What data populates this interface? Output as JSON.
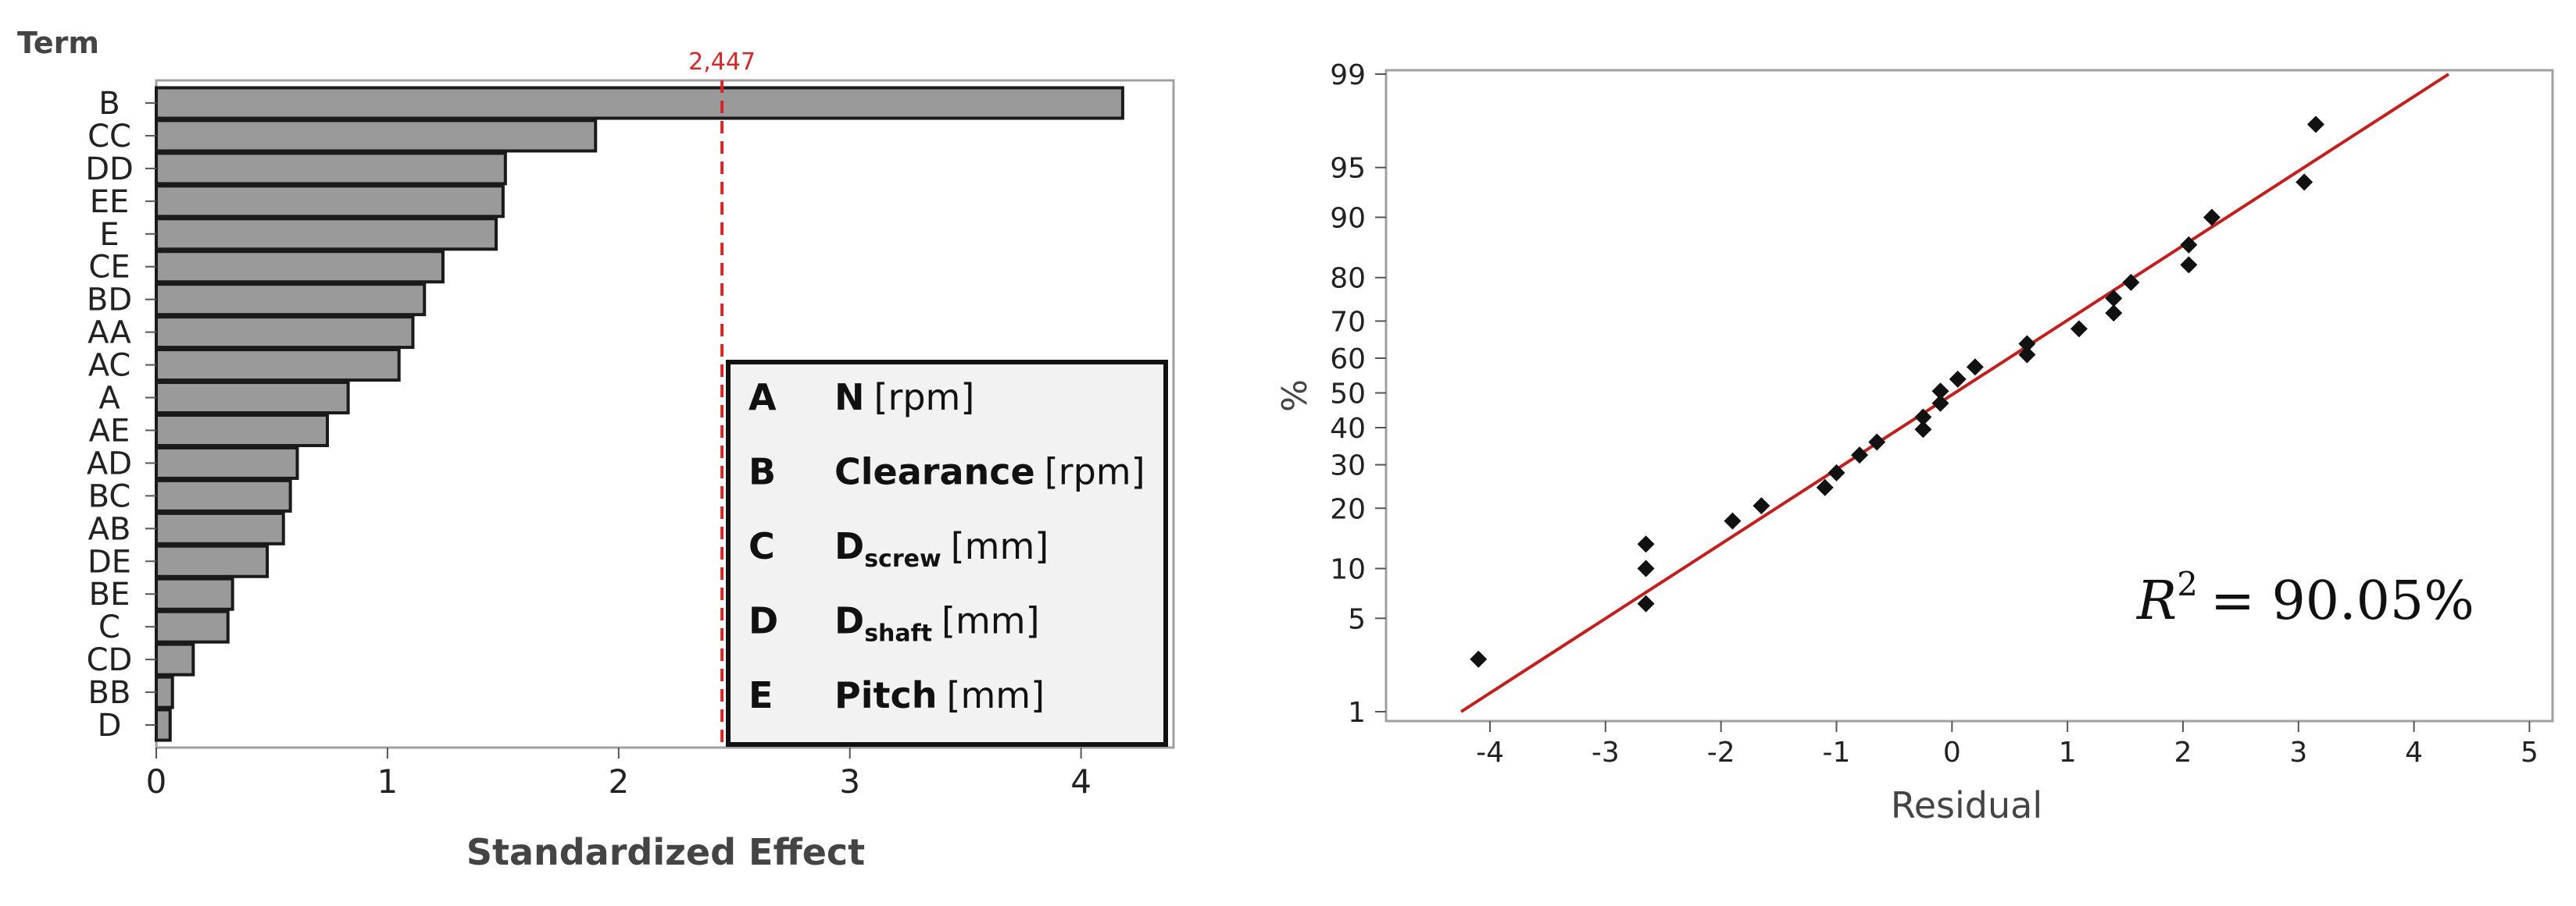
{
  "chart_data": [
    {
      "type": "bar",
      "orientation": "horizontal",
      "ylabel": "Term",
      "xlabel": "Standardized Effect",
      "categories": [
        "B",
        "CC",
        "DD",
        "EE",
        "E",
        "CE",
        "BD",
        "AA",
        "AC",
        "A",
        "AE",
        "AD",
        "BC",
        "AB",
        "DE",
        "BE",
        "C",
        "CD",
        "BB",
        "D"
      ],
      "values": [
        4.18,
        1.9,
        1.51,
        1.5,
        1.47,
        1.24,
        1.16,
        1.11,
        1.05,
        0.83,
        0.74,
        0.61,
        0.58,
        0.55,
        0.48,
        0.33,
        0.31,
        0.16,
        0.07,
        0.06
      ],
      "xlim": [
        0,
        4.4
      ],
      "xticks": [
        "0",
        "1",
        "2",
        "3",
        "4"
      ],
      "reference_line": {
        "value": 2.447,
        "label": "2,447",
        "color": "#d62728"
      },
      "bar_color": "#9a9a9a",
      "legend": [
        {
          "key": "A",
          "name": "N",
          "sub": "",
          "unit": "[rpm]"
        },
        {
          "key": "B",
          "name": "Clearance",
          "sub": "",
          "unit": "[rpm]"
        },
        {
          "key": "C",
          "name": "D",
          "sub": "screw",
          "unit": "[mm]"
        },
        {
          "key": "D",
          "name": "D",
          "sub": "shaft",
          "unit": "[mm]"
        },
        {
          "key": "E",
          "name": "Pitch",
          "sub": "",
          "unit": "[mm]"
        }
      ]
    },
    {
      "type": "scatter",
      "subtype": "normal probability plot",
      "xlabel": "Residual",
      "ylabel": "%",
      "xlim": [
        -4.9,
        5.2
      ],
      "ylim": [
        1,
        99
      ],
      "yscale": "normal-probability",
      "xticks": [
        "-4",
        "-3",
        "-2",
        "-1",
        "0",
        "1",
        "2",
        "3",
        "4",
        "5"
      ],
      "yticks": [
        "1",
        "5",
        "10",
        "20",
        "30",
        "40",
        "50",
        "60",
        "70",
        "80",
        "90",
        "95",
        "99"
      ],
      "fit_line": {
        "x": [
          -4.25,
          4.3
        ],
        "y": [
          1,
          99
        ],
        "color": "#c0201e"
      },
      "annotation": {
        "lhs": "R",
        "sup": "2",
        "rhs": "= 90.05%"
      },
      "points": [
        {
          "x": -4.1,
          "y": 2.6
        },
        {
          "x": -2.65,
          "y": 6.2
        },
        {
          "x": -2.65,
          "y": 10
        },
        {
          "x": -2.65,
          "y": 13.5
        },
        {
          "x": -1.9,
          "y": 17.5
        },
        {
          "x": -1.65,
          "y": 20.5
        },
        {
          "x": -1.1,
          "y": 24.5
        },
        {
          "x": -1.0,
          "y": 28
        },
        {
          "x": -0.8,
          "y": 32.5
        },
        {
          "x": -0.65,
          "y": 36
        },
        {
          "x": -0.25,
          "y": 39.5
        },
        {
          "x": -0.25,
          "y": 43
        },
        {
          "x": -0.1,
          "y": 47
        },
        {
          "x": -0.1,
          "y": 50.5
        },
        {
          "x": 0.05,
          "y": 54
        },
        {
          "x": 0.2,
          "y": 57.5
        },
        {
          "x": 0.65,
          "y": 61
        },
        {
          "x": 0.65,
          "y": 64
        },
        {
          "x": 1.1,
          "y": 68
        },
        {
          "x": 1.4,
          "y": 72
        },
        {
          "x": 1.4,
          "y": 75.5
        },
        {
          "x": 1.55,
          "y": 79
        },
        {
          "x": 2.05,
          "y": 82.5
        },
        {
          "x": 2.05,
          "y": 86
        },
        {
          "x": 2.25,
          "y": 90
        },
        {
          "x": 3.05,
          "y": 93.8
        },
        {
          "x": 3.15,
          "y": 97.5
        }
      ]
    }
  ]
}
